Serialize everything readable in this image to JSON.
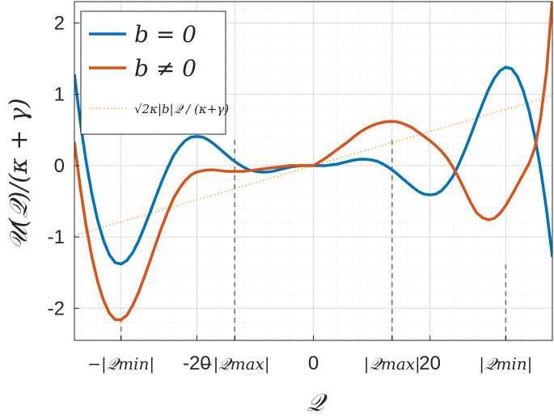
{
  "chart_data": {
    "type": "line",
    "xlabel": "𝒬",
    "ylabel": "𝒰(𝒬)/(κ + γ)",
    "xlim": [
      -41,
      41
    ],
    "ylim": [
      -2.45,
      2.3
    ],
    "grid": true,
    "minor_grid": true,
    "legend_position": "top-left",
    "x_ticks": [
      {
        "value": -33,
        "label": "−|𝒬min|"
      },
      {
        "value": -20,
        "label": "-20"
      },
      {
        "value": -13.5,
        "label": "−|𝒬max|"
      },
      {
        "value": 0,
        "label": "0"
      },
      {
        "value": 13.5,
        "label": "|𝒬max|"
      },
      {
        "value": 20,
        "label": "20"
      },
      {
        "value": 33,
        "label": "|𝒬min|"
      }
    ],
    "y_ticks": [
      -2,
      -1,
      0,
      1,
      2
    ],
    "series": [
      {
        "name": "b = 0",
        "color": "#0072BD",
        "x": [
          -41,
          -40,
          -39,
          -38,
          -37,
          -36,
          -35,
          -34,
          -33,
          -32,
          -31,
          -30,
          -29,
          -28,
          -27,
          -26,
          -25,
          -24,
          -23,
          -22,
          -21,
          -20,
          -19,
          -18,
          -17,
          -16,
          -15,
          -14,
          -13,
          -12,
          -11,
          -10,
          -9,
          -8,
          -7,
          -6,
          -5,
          -4,
          -3,
          -2,
          -1,
          0,
          1,
          2,
          3,
          4,
          5,
          6,
          7,
          8,
          9,
          10,
          11,
          12,
          13,
          14,
          15,
          16,
          17,
          18,
          19,
          20,
          21,
          22,
          23,
          24,
          25,
          26,
          27,
          28,
          29,
          30,
          31,
          32,
          33,
          34,
          35,
          36,
          37,
          38,
          39,
          40,
          41
        ],
        "y": [
          1.28,
          0.62,
          0.06,
          -0.4,
          -0.77,
          -1.05,
          -1.25,
          -1.36,
          -1.38,
          -1.33,
          -1.22,
          -1.06,
          -0.86,
          -0.65,
          -0.43,
          -0.22,
          -0.03,
          0.14,
          0.26,
          0.35,
          0.4,
          0.41,
          0.4,
          0.36,
          0.3,
          0.23,
          0.16,
          0.09,
          0.03,
          -0.02,
          -0.06,
          -0.08,
          -0.09,
          -0.09,
          -0.08,
          -0.06,
          -0.04,
          -0.02,
          -0.01,
          0.0,
          0.0,
          0.0,
          0.0,
          0.0,
          0.01,
          0.02,
          0.04,
          0.06,
          0.08,
          0.09,
          0.09,
          0.08,
          0.06,
          0.02,
          -0.03,
          -0.09,
          -0.16,
          -0.23,
          -0.3,
          -0.36,
          -0.4,
          -0.41,
          -0.4,
          -0.35,
          -0.26,
          -0.14,
          0.03,
          0.22,
          0.43,
          0.65,
          0.86,
          1.06,
          1.22,
          1.33,
          1.38,
          1.36,
          1.25,
          1.05,
          0.77,
          0.4,
          -0.06,
          -0.62,
          -1.28
        ]
      },
      {
        "name": "b ≠ 0",
        "color": "#D95319",
        "x": [
          -41,
          -40,
          -39,
          -38,
          -37,
          -36,
          -35,
          -34,
          -33,
          -32,
          -31,
          -30,
          -29,
          -28,
          -27,
          -26,
          -25,
          -24,
          -23,
          -22,
          -21,
          -20,
          -19,
          -18,
          -17,
          -16,
          -15,
          -14,
          -13,
          -12,
          -11,
          -10,
          -9,
          -8,
          -7,
          -6,
          -5,
          -4,
          -3,
          -2,
          -1,
          0,
          1,
          2,
          3,
          4,
          5,
          6,
          7,
          8,
          9,
          10,
          11,
          12,
          13,
          14,
          15,
          16,
          17,
          18,
          19,
          20,
          21,
          22,
          23,
          24,
          25,
          26,
          27,
          28,
          29,
          30,
          31,
          32,
          33,
          34,
          35,
          36,
          37,
          38,
          39,
          40,
          41
        ],
        "y": [
          0.33,
          -0.3,
          -0.84,
          -1.28,
          -1.63,
          -1.89,
          -2.07,
          -2.16,
          -2.16,
          -2.1,
          -1.96,
          -1.78,
          -1.56,
          -1.33,
          -1.09,
          -0.86,
          -0.65,
          -0.46,
          -0.32,
          -0.21,
          -0.13,
          -0.09,
          -0.07,
          -0.06,
          -0.06,
          -0.07,
          -0.08,
          -0.08,
          -0.08,
          -0.08,
          -0.07,
          -0.06,
          -0.05,
          -0.04,
          -0.03,
          -0.02,
          -0.01,
          0.0,
          0.0,
          0.0,
          0.0,
          0.0,
          0.05,
          0.1,
          0.16,
          0.22,
          0.28,
          0.34,
          0.41,
          0.47,
          0.52,
          0.56,
          0.59,
          0.61,
          0.62,
          0.62,
          0.6,
          0.57,
          0.53,
          0.47,
          0.41,
          0.35,
          0.28,
          0.2,
          0.1,
          -0.03,
          -0.18,
          -0.35,
          -0.52,
          -0.66,
          -0.73,
          -0.76,
          -0.74,
          -0.67,
          -0.56,
          -0.42,
          -0.27,
          -0.12,
          0.03,
          0.25,
          0.68,
          1.32,
          2.35
        ]
      },
      {
        "name": "√2κ|b|𝒬 / (κ+γ)",
        "color": "#EDB120",
        "style": "dotted",
        "x": [
          -41,
          41
        ],
        "y": [
          -0.98,
          0.98
        ]
      }
    ],
    "reference_lines": [
      {
        "x": -33,
        "y_bottom": -2.45,
        "y_top": -2.16
      },
      {
        "x": -13.5,
        "y_bottom": -2.45,
        "y_top": 0.36
      },
      {
        "x": 13.5,
        "y_bottom": -2.45,
        "y_top": 0.36
      },
      {
        "x": 33,
        "y_bottom": -2.45,
        "y_top": -1.38
      }
    ]
  }
}
